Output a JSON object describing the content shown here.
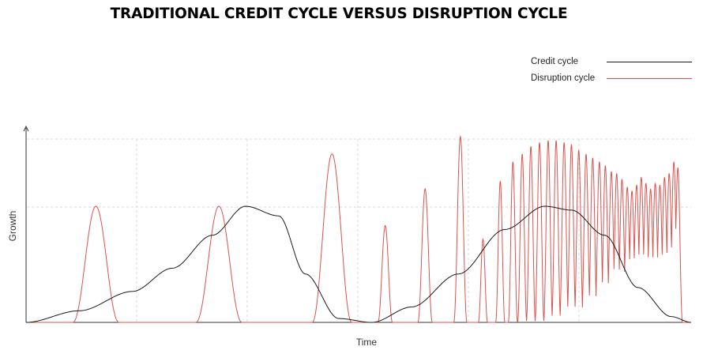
{
  "title": "TRADITIONAL CREDIT CYCLE VERSUS DISRUPTION CYCLE",
  "legend": [
    {
      "label": "Credit cycle",
      "color": "#1a1a1a"
    },
    {
      "label": "Disruption cycle",
      "color": "#d9534f"
    }
  ],
  "chart_data": {
    "type": "line",
    "title": "TRADITIONAL CREDIT CYCLE VERSUS DISRUPTION CYCLE",
    "xlabel": "Time",
    "ylabel": "Growth",
    "grid": true,
    "legend_position": "top-right",
    "xlim": [
      0,
      100
    ],
    "ylim": [
      0,
      100
    ],
    "series": [
      {
        "name": "Credit cycle",
        "color": "#1a1a1a",
        "points": [
          [
            0,
            0
          ],
          [
            8,
            6
          ],
          [
            16,
            16
          ],
          [
            22,
            28
          ],
          [
            28,
            45
          ],
          [
            33,
            60
          ],
          [
            38,
            55
          ],
          [
            42,
            25
          ],
          [
            47,
            2
          ],
          [
            52,
            0
          ],
          [
            58,
            8
          ],
          [
            65,
            25
          ],
          [
            72,
            48
          ],
          [
            78,
            60
          ],
          [
            82,
            58
          ],
          [
            87,
            45
          ],
          [
            92,
            18
          ],
          [
            97,
            3
          ],
          [
            100,
            0
          ]
        ]
      },
      {
        "name": "Disruption cycle",
        "color": "#d9534f",
        "peaks": [
          [
            10.5,
            60,
            3.5
          ],
          [
            29,
            60,
            3.5
          ],
          [
            46,
            87,
            3.0
          ],
          [
            54,
            50,
            1.1
          ],
          [
            60,
            69,
            1.1
          ],
          [
            65.3,
            96,
            1.0
          ],
          [
            68.7,
            43,
            0.7
          ],
          [
            71.3,
            73,
            0.7
          ],
          [
            73.2,
            83,
            0.7
          ],
          [
            74.6,
            87,
            0.7
          ],
          [
            75.9,
            91,
            0.7
          ],
          [
            77.2,
            93,
            0.7
          ],
          [
            78.5,
            94,
            0.7
          ],
          [
            79.7,
            94,
            0.7
          ],
          [
            80.9,
            93,
            0.7
          ],
          [
            82.0,
            92,
            0.7
          ],
          [
            83.1,
            89,
            0.7
          ],
          [
            84.2,
            87,
            0.7
          ],
          [
            85.2,
            85,
            0.7
          ],
          [
            86.2,
            83,
            0.7
          ],
          [
            87.1,
            81,
            0.7
          ],
          [
            88.0,
            78,
            0.7
          ],
          [
            88.8,
            77,
            0.7
          ],
          [
            89.6,
            74,
            0.7
          ],
          [
            90.4,
            70,
            0.7
          ],
          [
            91.1,
            68,
            0.7
          ],
          [
            91.8,
            71,
            0.7
          ],
          [
            92.5,
            75,
            0.7
          ],
          [
            93.2,
            72,
            0.7
          ],
          [
            93.9,
            69,
            0.7
          ],
          [
            94.6,
            72,
            0.7
          ],
          [
            95.3,
            71,
            0.7
          ],
          [
            96.0,
            75,
            0.7
          ],
          [
            96.7,
            77,
            0.7
          ],
          [
            97.4,
            83,
            0.7
          ],
          [
            98.0,
            80,
            0.7
          ]
        ]
      }
    ]
  }
}
